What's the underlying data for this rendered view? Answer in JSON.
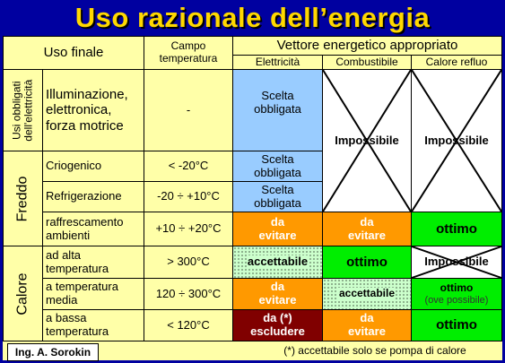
{
  "title": "Uso razionale dell’energia",
  "header": {
    "uso_finale": "Uso finale",
    "campo_temperatura": "Campo\ntemperatura",
    "vettore": "Vettore energetico  appropriato",
    "elettricita": "Elettricità",
    "combustibile": "Combustibile",
    "calore_refluo": "Calore refluo"
  },
  "groups": {
    "usi_obbligati": "Usi obbligati\ndell'elettricità",
    "freddo": "Freddo",
    "calore": "Calore"
  },
  "rows": [
    {
      "uso": "Illuminazione,\nelettronica,\nforza motrice",
      "temp": "-",
      "elettricita": "Scelta\nobbligata",
      "combustibile": "Impossibile",
      "refluo": "Impossibile"
    },
    {
      "uso": "Criogenico",
      "temp": "< -20°C",
      "elettricita": "Scelta\nobbligata"
    },
    {
      "uso": "Refrigerazione",
      "temp": "-20 ÷ +10°C",
      "elettricita": "Scelta\nobbligata"
    },
    {
      "uso": "raffrescamento\nambienti",
      "temp": "+10 ÷ +20°C",
      "elettricita": "da\nevitare",
      "combustibile": "da\nevitare",
      "refluo": "ottimo"
    },
    {
      "uso": "ad alta\ntemperatura",
      "temp": "> 300°C",
      "elettricita": "accettabile",
      "combustibile": "ottimo",
      "refluo": "Impossibile"
    },
    {
      "uso": "a temperatura\nmedia",
      "temp": "120 ÷ 300°C",
      "elettricita": "da\nevitare",
      "combustibile": "accettabile",
      "refluo": "ottimo",
      "refluo_note": "(ove possibile)"
    },
    {
      "uso": "a bassa\ntemperatura",
      "temp": "< 120°C",
      "elettricita": "da (*)\nescludere",
      "combustibile": "da\nevitare",
      "refluo": "ottimo"
    }
  ],
  "footer": {
    "author": "Ing. A. Sorokin",
    "note": "(*) accettabile solo se pompa di calore"
  },
  "colors": {
    "background": "#0000a0",
    "title": "#ffd800",
    "panel": "#ffffa8",
    "obbligata": "#99ccff",
    "evitare": "#ff9900",
    "ottimo": "#00ee00",
    "escludere": "#800000",
    "accettabile": "#ccffcc"
  }
}
